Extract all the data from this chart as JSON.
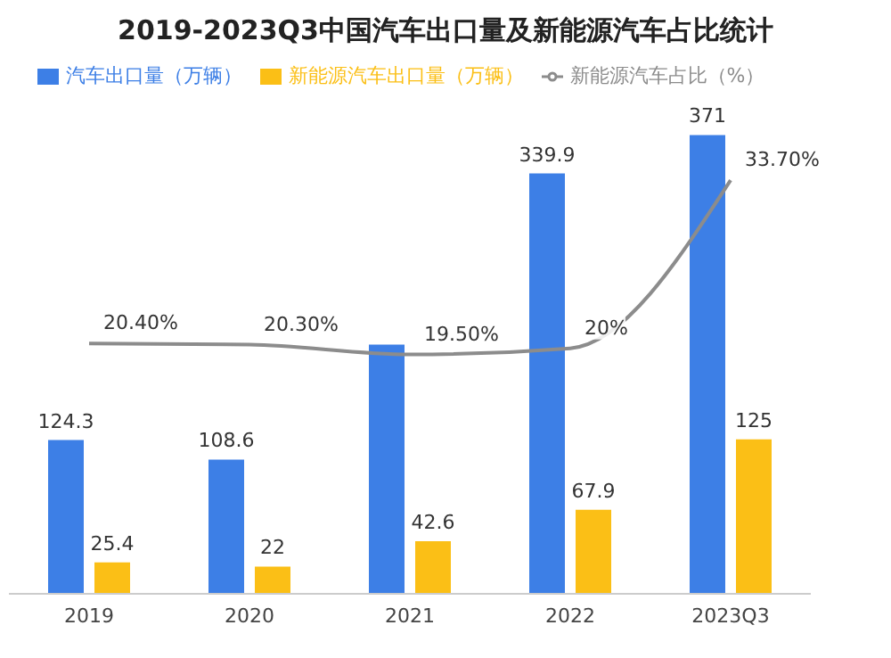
{
  "chart_data": {
    "type": "bar",
    "title": "2019-2023Q3中国汽车出口量及新能源汽车占比统计",
    "categories": [
      "2019",
      "2020",
      "2021",
      "2022",
      "2023Q3"
    ],
    "series": [
      {
        "name": "汽车出口量（万辆）",
        "color": "#3d7fe6",
        "values": [
          124.3,
          108.6,
          201.5,
          339.9,
          371
        ],
        "value_labels": [
          "124.3",
          "108.6",
          null,
          "339.9",
          "371"
        ]
      },
      {
        "name": "新能源汽车出口量（万辆）",
        "color": "#fbbf16",
        "values": [
          25.4,
          22,
          42.6,
          67.9,
          125
        ],
        "value_labels": [
          "25.4",
          "22",
          "42.6",
          "67.9",
          "125"
        ]
      },
      {
        "name": "新能源汽车占比（%）",
        "type": "line",
        "axis": "y2",
        "color": "#8c8c8c",
        "values": [
          20.4,
          20.3,
          19.5,
          20,
          33.7
        ],
        "value_labels": [
          "20.40%",
          "20.30%",
          "19.50%",
          "20%",
          "33.70%"
        ]
      }
    ],
    "legend": "top",
    "grid": false,
    "marker": "none"
  }
}
